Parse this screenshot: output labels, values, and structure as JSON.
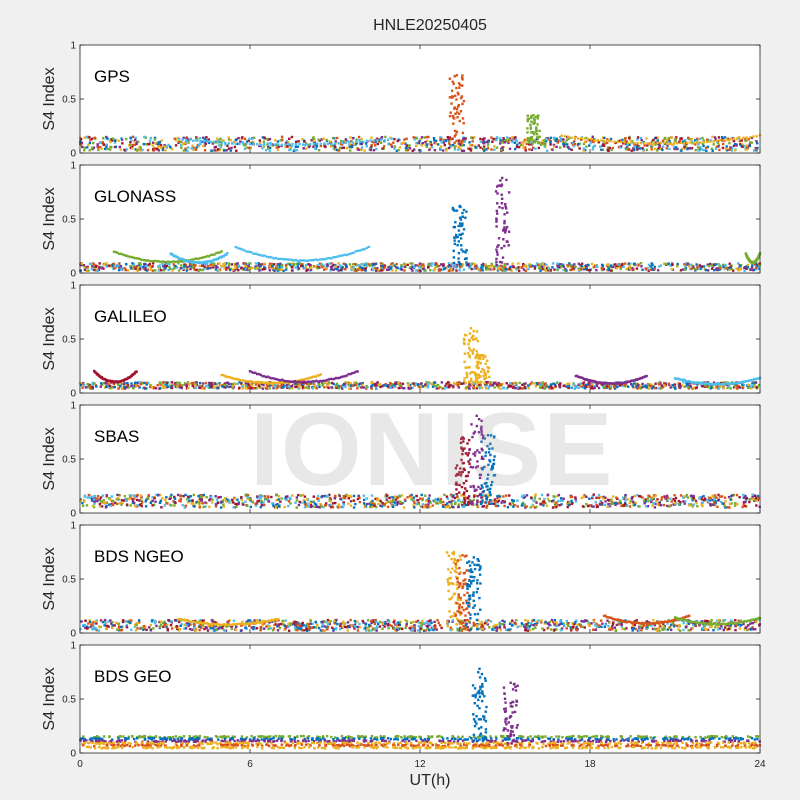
{
  "figure": {
    "title": "HNLE20250405",
    "xlabel": "UT(h)",
    "watermark": "IONISE",
    "background": "#f0f0f0",
    "axes_background": "#ffffff"
  },
  "chart_data": [
    {
      "type": "scatter",
      "panel_label": "GPS",
      "ylabel": "S4 Index",
      "xlim": [
        0,
        24
      ],
      "ylim": [
        0,
        1
      ],
      "yticks": [
        "0",
        "0.5",
        "1"
      ],
      "xticks": [],
      "baseline": [
        0.02,
        0.15
      ],
      "arcs": [
        {
          "x0": 3.5,
          "x1": 11,
          "peak": 0.13,
          "color": "#4DBEEE"
        },
        {
          "x0": 17,
          "x1": 24,
          "peak": 0.16,
          "color": "#EDB120"
        }
      ],
      "spikes": [
        {
          "x": 13.3,
          "y_peak": 0.72,
          "color": "#D95319"
        },
        {
          "x": 16,
          "y_peak": 0.35,
          "color": "#77AC30"
        }
      ]
    },
    {
      "type": "scatter",
      "panel_label": "GLONASS",
      "ylabel": "S4 Index",
      "xlim": [
        0,
        24
      ],
      "ylim": [
        0,
        1
      ],
      "yticks": [
        "0",
        "0.5",
        "1"
      ],
      "xticks": [],
      "baseline": [
        0.02,
        0.09
      ],
      "arcs": [
        {
          "x0": 1.2,
          "x1": 5,
          "peak": 0.2,
          "color": "#77AC30"
        },
        {
          "x0": 3.2,
          "x1": 5.2,
          "peak": 0.18,
          "color": "#4DBEEE"
        },
        {
          "x0": 5.5,
          "x1": 10.2,
          "peak": 0.24,
          "color": "#4DBEEE"
        },
        {
          "x0": 23.5,
          "x1": 24,
          "peak": 0.18,
          "color": "#77AC30"
        }
      ],
      "spikes": [
        {
          "x": 13.4,
          "y_peak": 0.62,
          "color": "#0072BD"
        },
        {
          "x": 14.9,
          "y_peak": 0.88,
          "color": "#7E2F8E"
        }
      ]
    },
    {
      "type": "scatter",
      "panel_label": "GALILEO",
      "ylabel": "S4 Index",
      "xlim": [
        0,
        24
      ],
      "ylim": [
        0,
        1
      ],
      "yticks": [
        "0",
        "0.5",
        "1"
      ],
      "xticks": [],
      "baseline": [
        0.04,
        0.1
      ],
      "arcs": [
        {
          "x0": 0.5,
          "x1": 2,
          "peak": 0.2,
          "color": "#A2142F"
        },
        {
          "x0": 5,
          "x1": 8.5,
          "peak": 0.17,
          "color": "#EDB120"
        },
        {
          "x0": 6,
          "x1": 9.8,
          "peak": 0.2,
          "color": "#7E2F8E"
        },
        {
          "x0": 17.5,
          "x1": 20,
          "peak": 0.16,
          "color": "#7E2F8E"
        },
        {
          "x0": 21,
          "x1": 24,
          "peak": 0.14,
          "color": "#4DBEEE"
        }
      ],
      "spikes": [
        {
          "x": 13.8,
          "y_peak": 0.6,
          "color": "#EDB120"
        },
        {
          "x": 14.2,
          "y_peak": 0.35,
          "color": "#EDB120"
        }
      ]
    },
    {
      "type": "scatter",
      "panel_label": "SBAS",
      "ylabel": "S4 Index",
      "xlim": [
        0,
        24
      ],
      "ylim": [
        0,
        1
      ],
      "yticks": [
        "0",
        "0.5",
        "1"
      ],
      "xticks": [],
      "baseline": [
        0.05,
        0.17
      ],
      "arcs": [],
      "spikes": [
        {
          "x": 13.5,
          "y_peak": 0.7,
          "color": "#A2142F"
        },
        {
          "x": 14,
          "y_peak": 0.9,
          "color": "#7E2F8E"
        },
        {
          "x": 14.4,
          "y_peak": 0.72,
          "color": "#0072BD"
        }
      ]
    },
    {
      "type": "scatter",
      "panel_label": "BDS NGEO",
      "ylabel": "S4 Index",
      "xlim": [
        0,
        24
      ],
      "ylim": [
        0,
        1
      ],
      "yticks": [
        "0",
        "0.5",
        "1"
      ],
      "xticks": [],
      "baseline": [
        0.02,
        0.12
      ],
      "arcs": [
        {
          "x0": 3.5,
          "x1": 7,
          "peak": 0.13,
          "color": "#EDB120"
        },
        {
          "x0": 18.5,
          "x1": 21.5,
          "peak": 0.16,
          "color": "#D95319"
        },
        {
          "x0": 21,
          "x1": 24,
          "peak": 0.14,
          "color": "#77AC30"
        }
      ],
      "spikes": [
        {
          "x": 13.2,
          "y_peak": 0.75,
          "color": "#EDB120"
        },
        {
          "x": 13.5,
          "y_peak": 0.72,
          "color": "#D95319"
        },
        {
          "x": 13.9,
          "y_peak": 0.7,
          "color": "#0072BD"
        }
      ]
    },
    {
      "type": "scatter",
      "panel_label": "BDS GEO",
      "ylabel": "S4 Index",
      "xlim": [
        0,
        24
      ],
      "ylim": [
        0,
        1
      ],
      "yticks": [
        "0",
        "0.5",
        "1"
      ],
      "xticks": [
        "0",
        "6",
        "12",
        "18",
        "24"
      ],
      "bands": [
        {
          "y": 0.15,
          "color": "#77AC30"
        },
        {
          "y": 0.13,
          "color": "#0072BD"
        },
        {
          "y": 0.11,
          "color": "#7E2F8E"
        },
        {
          "y": 0.09,
          "color": "#EDB120"
        },
        {
          "y": 0.07,
          "color": "#D95319"
        },
        {
          "y": 0.05,
          "color": "#EDB120"
        }
      ],
      "spikes": [
        {
          "x": 14.1,
          "y_peak": 0.78,
          "color": "#0072BD"
        },
        {
          "x": 15.2,
          "y_peak": 0.65,
          "color": "#7E2F8E"
        }
      ]
    }
  ]
}
